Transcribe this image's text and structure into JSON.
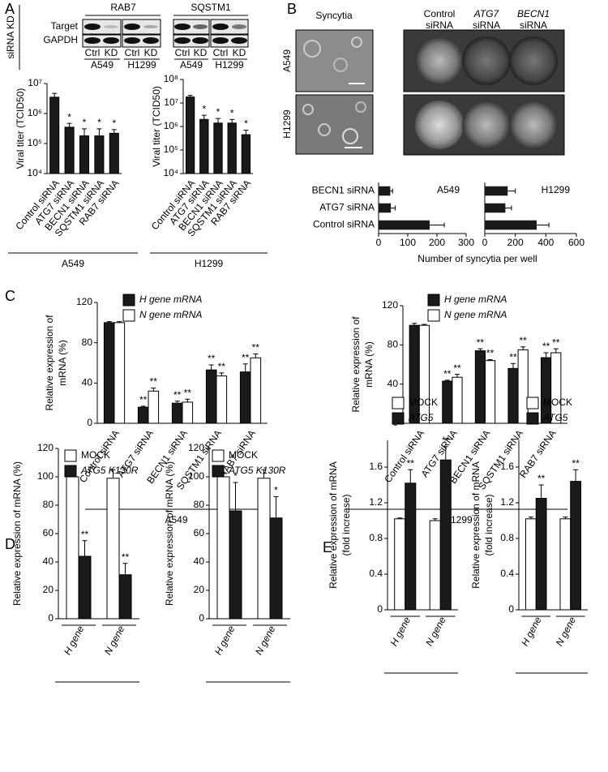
{
  "panel_labels": [
    "A",
    "B",
    "C",
    "D",
    "E"
  ],
  "blot": {
    "row_label": "siRNA KD",
    "targets": [
      "RAB7",
      "SQSTM1"
    ],
    "rows": [
      "Target",
      "GAPDH"
    ],
    "lanes": [
      "Ctrl",
      "KD",
      "Ctrl",
      "KD",
      "Ctrl",
      "KD",
      "Ctrl",
      "KD"
    ],
    "cells": [
      "A549",
      "H1299",
      "A549",
      "H1299"
    ]
  },
  "images": {
    "syncytia_title": "Syncytia",
    "rows": [
      "A549",
      "H1299"
    ],
    "plate_columns": [
      {
        "gene": "Control",
        "suffix": "siRNA"
      },
      {
        "gene": "ATG7",
        "suffix": "siRNA"
      },
      {
        "gene": "BECN1",
        "suffix": "siRNA"
      }
    ]
  },
  "chart_data": [
    {
      "type": "bar",
      "ylabel": "Viral titer (TCID50)",
      "log": true,
      "color": "#1a1a1a",
      "categories": [
        "Control siRNA",
        "ATG7 siRNA",
        "BECN1 siRNA",
        "SQSTM1 siRNA",
        "RAB7 siRNA"
      ],
      "values": [
        3500000,
        350000,
        180000,
        180000,
        220000
      ],
      "errors": [
        1200000,
        120000,
        130000,
        130000,
        70000
      ],
      "significance": [
        null,
        "*",
        "*",
        "*",
        "*"
      ],
      "ylim": [
        10000,
        10000000
      ],
      "yticks": [
        {
          "value": 10000,
          "label": "10⁴"
        },
        {
          "value": 100000,
          "label": "10⁵"
        },
        {
          "value": 1000000,
          "label": "10⁶"
        },
        {
          "value": 10000000,
          "label": "10⁷"
        }
      ],
      "group_label": "A549"
    },
    {
      "type": "bar",
      "ylabel": "Viral titer (TCID50)",
      "log": true,
      "color": "#1a1a1a",
      "categories": [
        "Control siRNA",
        "ATG7 siRNA",
        "BECN1 siRNA",
        "SQSTM1 siRNA",
        "RAB7 siRNA"
      ],
      "values": [
        18000000,
        2000000,
        1400000,
        1400000,
        450000
      ],
      "errors": [
        3000000,
        1000000,
        800000,
        600000,
        250000
      ],
      "significance": [
        null,
        "*",
        "*",
        "*",
        "*"
      ],
      "ylim": [
        10000,
        100000000
      ],
      "yticks": [
        {
          "value": 10000,
          "label": "10⁴"
        },
        {
          "value": 100000,
          "label": "10⁵"
        },
        {
          "value": 1000000,
          "label": "10⁶"
        },
        {
          "value": 10000000,
          "label": "10⁷"
        },
        {
          "value": 100000000,
          "label": "10⁸"
        }
      ],
      "group_label": "H1299"
    },
    {
      "type": "barh",
      "title": "A549",
      "color": "#1a1a1a",
      "categories": [
        "BECN1 siRNA",
        "ATG7 siRNA",
        "Control siRNA"
      ],
      "values": [
        40,
        42,
        175
      ],
      "errors": [
        8,
        15,
        50
      ],
      "xlim": [
        0,
        300
      ],
      "xticks": [
        0,
        100,
        200,
        300
      ],
      "xlabel": "Number of syncytia per well"
    },
    {
      "type": "barh",
      "title": "H1299",
      "color": "#1a1a1a",
      "values": [
        150,
        135,
        340
      ],
      "errors": [
        50,
        40,
        80
      ],
      "xlim": [
        0,
        600
      ],
      "xticks": [
        0,
        200,
        400,
        600
      ]
    },
    {
      "type": "bar",
      "ylabel": [
        "Relative expression of",
        "mRNA (%)"
      ],
      "categories": [
        "Control siRNA",
        "ATG7 siRNA",
        "BECN1 siRNA",
        "SQSTM1 siRNA",
        "RAB7 siRNA"
      ],
      "series": [
        {
          "name": "H gene mRNA",
          "color": "#1a1a1a",
          "values": [
            100,
            16,
            20,
            53,
            51
          ],
          "errors": [
            1,
            1,
            2,
            5,
            8
          ],
          "significance": [
            null,
            "**",
            "**",
            "**",
            "**"
          ]
        },
        {
          "name": "N gene mRNA",
          "color": "#ffffff",
          "values": [
            100,
            32,
            21,
            47,
            65
          ],
          "errors": [
            1,
            3,
            3,
            3,
            4
          ],
          "significance": [
            null,
            "**",
            "**",
            "**",
            "**"
          ]
        }
      ],
      "ylim": [
        0,
        120
      ],
      "yticks": [
        0,
        40,
        80,
        120
      ],
      "group_label": "A549"
    },
    {
      "type": "bar",
      "ylabel": [
        "Relative expression of",
        "mRNA (%)"
      ],
      "categories": [
        "Control siRNA",
        "ATG7 siRNA",
        "BECN1 siRNA",
        "SQSTM1 siRNA",
        "RAB7 siRNA"
      ],
      "series": [
        {
          "name": "H gene mRNA",
          "color": "#1a1a1a",
          "values": [
            100,
            43,
            74,
            56,
            67
          ],
          "errors": [
            2,
            1,
            2,
            5,
            5
          ],
          "significance": [
            null,
            "**",
            "**",
            "**",
            "**"
          ]
        },
        {
          "name": "N gene mRNA",
          "color": "#ffffff",
          "values": [
            100,
            47,
            64,
            75,
            72
          ],
          "errors": [
            1,
            3,
            1,
            3,
            4
          ],
          "significance": [
            null,
            "**",
            "**",
            "**",
            "**"
          ]
        }
      ],
      "ylim": [
        0,
        120
      ],
      "yticks": [
        0,
        40,
        80,
        120
      ],
      "group_label": "H1299"
    },
    {
      "type": "bar",
      "ylabel": "Relative expression of mRNA (%)",
      "categories": [
        "H gene",
        "N gene"
      ],
      "series": [
        {
          "name": "MOCK",
          "color": "#ffffff",
          "values": [
            100,
            99
          ],
          "errors": [
            3,
            6
          ]
        },
        {
          "name": "ATG5 K130R",
          "color": "#1a1a1a",
          "values": [
            44,
            31
          ],
          "errors": [
            11,
            8
          ],
          "significance": [
            "**",
            "**"
          ]
        }
      ],
      "ylim": [
        0,
        120
      ],
      "yticks": [
        0,
        20,
        40,
        60,
        80,
        100,
        120
      ]
    },
    {
      "type": "bar",
      "ylabel": "Relative expression of mRNA (%)",
      "categories": [
        "H gene",
        "N gene"
      ],
      "series": [
        {
          "name": "MOCK",
          "color": "#ffffff",
          "values": [
            100,
            99
          ],
          "errors": [
            3,
            6
          ]
        },
        {
          "name": "ATG5 K130R",
          "color": "#1a1a1a",
          "values": [
            76,
            71
          ],
          "errors": [
            20,
            15
          ],
          "significance": [
            "*",
            "*"
          ]
        }
      ],
      "ylim": [
        0,
        120
      ],
      "yticks": [
        0,
        20,
        40,
        60,
        80,
        100,
        120
      ]
    },
    {
      "type": "bar",
      "ylabel": [
        "Relative expression of mRNA",
        "(fold increase)"
      ],
      "categories": [
        "H gene",
        "N gene"
      ],
      "series": [
        {
          "name": "MOCK",
          "color": "#ffffff",
          "values": [
            1.02,
            1.0
          ],
          "errors": [
            0.01,
            0.02
          ]
        },
        {
          "name": "ATG5",
          "color": "#1a1a1a",
          "values": [
            1.42,
            1.68
          ],
          "errors": [
            0.15,
            0.15
          ],
          "significance": [
            "**",
            "**"
          ]
        }
      ],
      "ylim": [
        0,
        1.9
      ],
      "yticks": [
        0,
        0.4,
        0.8,
        1.2,
        1.6
      ]
    },
    {
      "type": "bar",
      "ylabel": [
        "Relative expression of mRNA",
        "(fold increase)"
      ],
      "categories": [
        "H gene",
        "N gene"
      ],
      "series": [
        {
          "name": "MOCK",
          "color": "#ffffff",
          "values": [
            1.02,
            1.02
          ],
          "errors": [
            0.02,
            0.02
          ]
        },
        {
          "name": "ATG5",
          "color": "#1a1a1a",
          "values": [
            1.25,
            1.44
          ],
          "errors": [
            0.15,
            0.13
          ],
          "significance": [
            "**",
            "**"
          ]
        }
      ],
      "ylim": [
        0,
        1.9
      ],
      "yticks": [
        0,
        0.4,
        0.8,
        1.2,
        1.6
      ]
    }
  ]
}
